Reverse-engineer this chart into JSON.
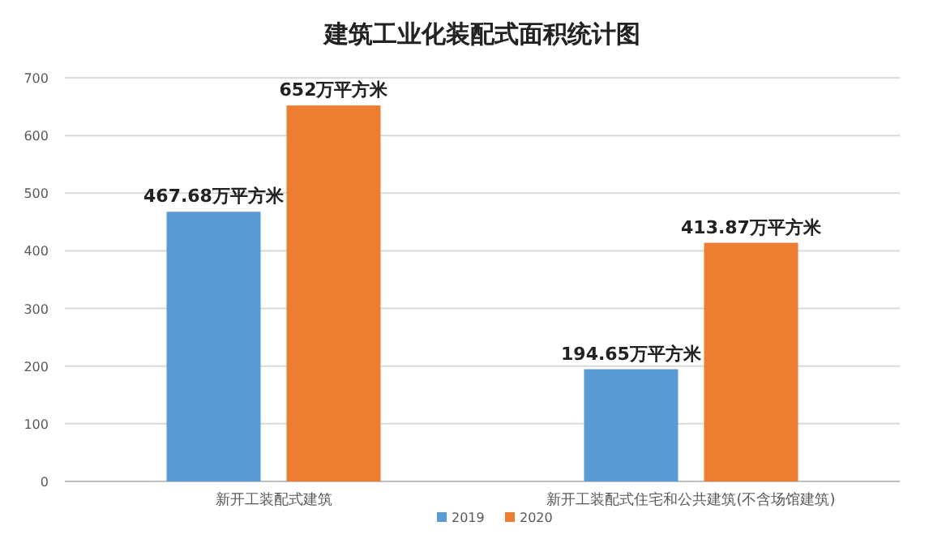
{
  "chart_data": {
    "type": "bar",
    "title": "建筑工业化装配式面积统计图",
    "categories": [
      "新开工装配式建筑",
      "新开工装配式住宅和公共建筑(不含场馆建筑)"
    ],
    "series": [
      {
        "name": "2019",
        "color": "#5b9bd5",
        "values": [
          467.68,
          194.65
        ],
        "value_labels": [
          "467.68万平方米",
          "194.65万平方米"
        ]
      },
      {
        "name": "2020",
        "color": "#ed7d31",
        "values": [
          652,
          413.87
        ],
        "value_labels": [
          "652万平方米",
          "413.87万平方米"
        ]
      }
    ],
    "ylim": [
      0,
      700
    ],
    "yticks": [
      0,
      100,
      200,
      300,
      400,
      500,
      600,
      700
    ],
    "grid": "y",
    "legend": "bottom"
  }
}
